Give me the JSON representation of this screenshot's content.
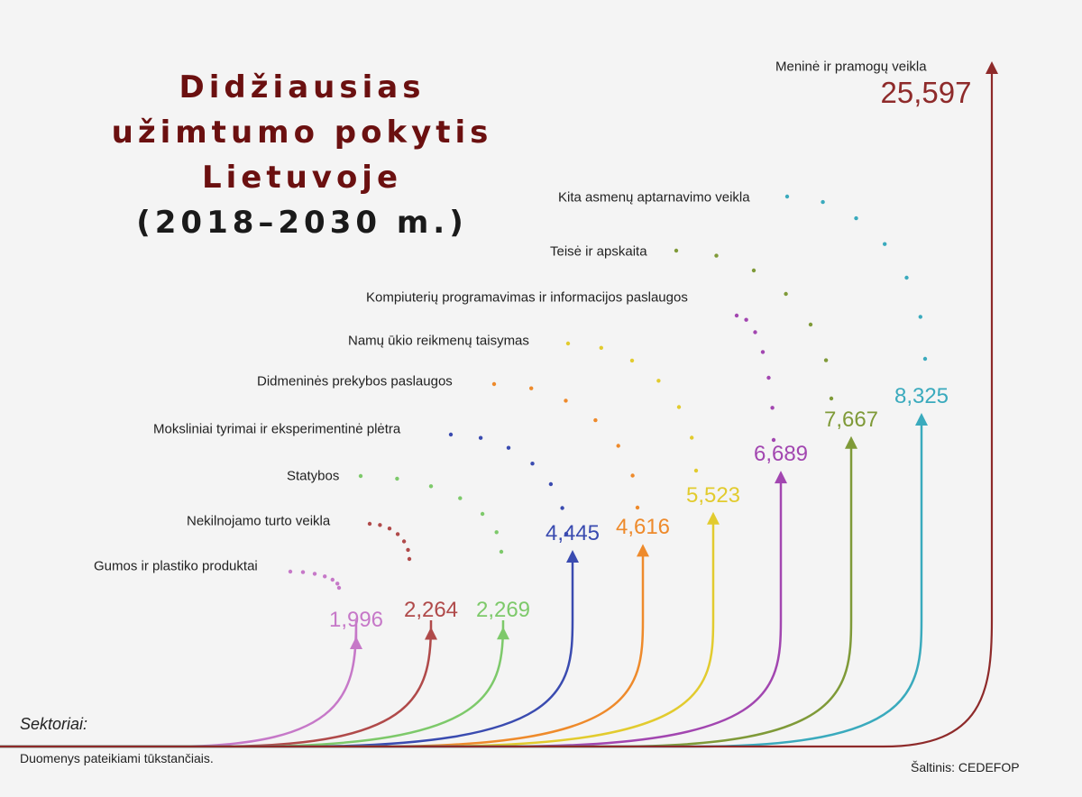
{
  "title": {
    "line1": "Didžiausias",
    "line2": "užimtumo pokytis",
    "line3": "Lietuvoje",
    "line4": "(2018–2030 m.)"
  },
  "footer": {
    "sectors_label": "Sektoriai:",
    "note": "Duomenys pateikiami tūkstančiais.",
    "source": "Šaltinis: CEDEFOP"
  },
  "chart_data": {
    "type": "bar",
    "categories": [
      "Gumos ir plastiko produktai",
      "Nekilnojamo turto veikla",
      "Statybos",
      "Moksliniai tyrimai ir eksperimentinė plėtra",
      "Didmeninės prekybos paslaugos",
      "Namų ūkio reikmenų taisymas",
      "Kompiuterių programavimas ir informacijos paslaugos",
      "Teisė ir apskaita",
      "Kita asmenų aptarnavimo veikla",
      "Meninė ir pramogų veikla"
    ],
    "values": [
      1.996,
      2.264,
      2.269,
      4.445,
      4.616,
      5.523,
      6.689,
      7.667,
      8.325,
      25.597
    ],
    "value_labels": [
      "1,996",
      "2,264",
      "2,269",
      "4,445",
      "4,616",
      "5,523",
      "6,689",
      "7,667",
      "8,325",
      "25,597"
    ],
    "colors": [
      "#c678c8",
      "#b04a4a",
      "#7dc96a",
      "#3a4bb0",
      "#ee8a2b",
      "#e2cb2e",
      "#a246b0",
      "#7f9a38",
      "#3aaabd",
      "#8e2a2a"
    ]
  }
}
